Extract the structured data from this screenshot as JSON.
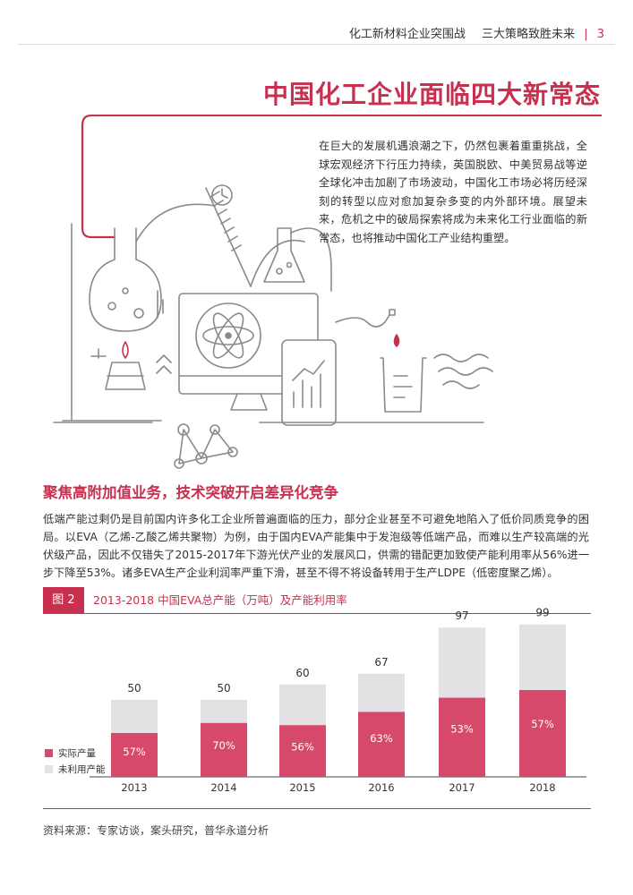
{
  "header": {
    "left_title": "化工新材料企业突围战",
    "right_title": "三大策略致胜未来",
    "separator": "|",
    "page_number": "3"
  },
  "page_title": "中国化工企业面临四大新常态",
  "intro": "在巨大的发展机遇浪潮之下，仍然包裹着重重挑战，全球宏观经济下行压力持续，英国脱欧、中美贸易战等逆全球化冲击加剧了市场波动，中国化工市场必将历经深刻的转型以应对愈加复杂多变的内外部环境。展望未来，危机之中的破局探索将成为未来化工行业面临的新常态，也将推动中国化工产业结构重塑。",
  "section_title": "聚焦高附加值业务，技术突破开启差异化竞争",
  "body": "低端产能过剩仍是目前国内许多化工企业所普遍面临的压力，部分企业甚至不可避免地陷入了低价同质竞争的困局。以EVA（乙烯-乙酸乙烯共聚物）为例，由于国内EVA产能集中于发泡级等低端产品，而难以生产较高端的光伏级产品，因此不仅错失了2015-2017年下游光伏产业的发展风口，供需的错配更加致使产能利用率从56%进一步下降至53%。诸多EVA生产企业利润率严重下滑，甚至不得不将设备转用于生产LDPE（低密度聚乙烯）。",
  "figure": {
    "tag": "图 2",
    "title": "2013-2018 中国EVA总产能（万吨）及产能利用率"
  },
  "legend": {
    "actual": "实际产量",
    "unused": "未利用产能"
  },
  "colors": {
    "accent": "#c7314f",
    "bar_actual": "#d6496a",
    "bar_unused": "#e2e2e4"
  },
  "chart_data": {
    "type": "bar",
    "stacked": true,
    "title": "2013-2018 中国EVA总产能（万吨）及产能利用率",
    "categories": [
      "2013",
      "2014",
      "2015",
      "2016",
      "2017",
      "2018"
    ],
    "total_capacity": [
      50,
      50,
      60,
      67,
      97,
      99
    ],
    "utilization_labels": [
      "57%",
      "70%",
      "56%",
      "63%",
      "53%",
      "57%"
    ],
    "utilization": [
      0.57,
      0.7,
      0.56,
      0.63,
      0.53,
      0.57
    ],
    "series": [
      {
        "name": "实际产量",
        "values": [
          28.5,
          35,
          33.6,
          42.2,
          51.4,
          56.4
        ]
      },
      {
        "name": "未利用产能",
        "values": [
          21.5,
          15,
          26.4,
          24.8,
          45.6,
          42.6
        ]
      }
    ],
    "ylim": [
      0,
      100
    ],
    "legend_position": "left"
  },
  "source": "资料来源：专家访谈，案头研究，普华永道分析"
}
